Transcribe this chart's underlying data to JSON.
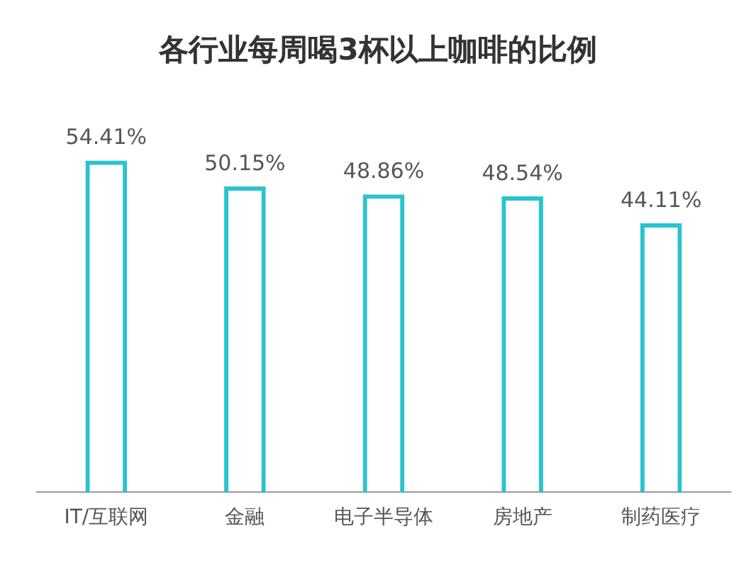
{
  "chart_data": {
    "type": "bar",
    "title": "各行业每周喝3杯以上咖啡的比例",
    "categories": [
      "IT/互联网",
      "金融",
      "电子半导体",
      "房地产",
      "制药医疗"
    ],
    "values": [
      54.41,
      50.15,
      48.86,
      48.54,
      44.11
    ],
    "value_labels": [
      "54.41%",
      "50.15%",
      "48.86%",
      "48.54%",
      "44.11%"
    ],
    "color": "#29c3cf",
    "relative": false,
    "grid": false,
    "legend": false
  }
}
